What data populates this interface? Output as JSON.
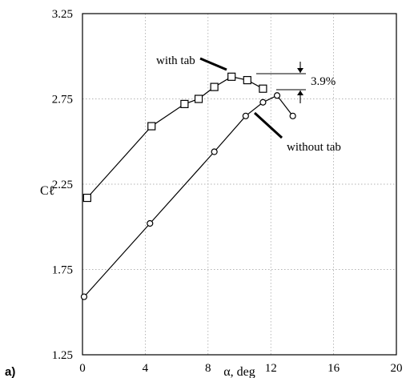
{
  "chart_data": {
    "type": "line",
    "panel_label": "a)",
    "xlabel": "α, deg",
    "ylabel": "Cℓ",
    "xlim": [
      0,
      20
    ],
    "ylim": [
      1.25,
      3.25
    ],
    "x_ticks": [
      0,
      4,
      8,
      12,
      16,
      20
    ],
    "y_ticks": [
      1.25,
      1.75,
      2.25,
      2.75,
      3.25
    ],
    "x_tick_labels": [
      "0",
      "4",
      "8",
      "12",
      "16",
      "20"
    ],
    "y_tick_labels": [
      "1.25",
      "1.75",
      "2.25",
      "2.75",
      "3.25"
    ],
    "grid": true,
    "series": [
      {
        "name": "with tab",
        "marker": "square",
        "x": [
          0.3,
          4.4,
          6.5,
          7.4,
          8.4,
          9.5,
          10.5,
          11.5
        ],
        "y": [
          2.17,
          2.59,
          2.72,
          2.75,
          2.82,
          2.88,
          2.86,
          2.81
        ]
      },
      {
        "name": "without tab",
        "marker": "circle",
        "x": [
          0.1,
          4.3,
          8.4,
          10.4,
          11.5,
          12.4,
          13.4
        ],
        "y": [
          1.59,
          2.02,
          2.44,
          2.65,
          2.73,
          2.77,
          2.65
        ]
      }
    ],
    "annotations": {
      "with_tab_label": "with tab",
      "without_tab_label": "without tab",
      "difference_label": "3.9%"
    }
  }
}
